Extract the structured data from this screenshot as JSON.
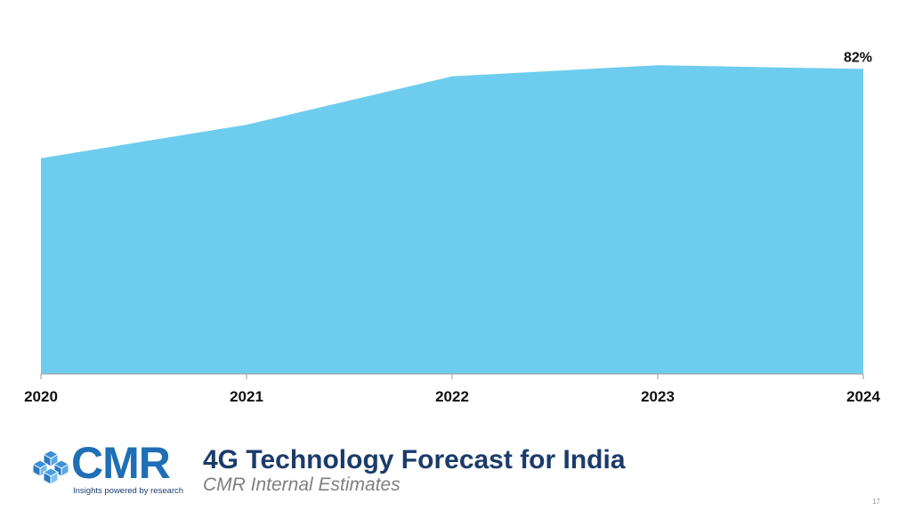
{
  "chart_data": {
    "type": "area",
    "title": "4G Technology Forecast for India",
    "subtitle": "CMR Internal Estimates",
    "categories": [
      "2020",
      "2021",
      "2022",
      "2023",
      "2024"
    ],
    "series": [
      {
        "name": "4G",
        "values": [
          0.58,
          0.67,
          0.8,
          0.83,
          0.82
        ]
      }
    ],
    "data_labels": [
      {
        "category": "2024",
        "text": "82%"
      }
    ],
    "ylim": [
      0,
      0.9
    ],
    "grid": false,
    "legend": "none",
    "colors": {
      "area": "#6ecdee",
      "axis": "#9a9a9a"
    }
  },
  "footer": {
    "logo_text": "CMR",
    "logo_tagline": "Insights powered by research",
    "title": "4G Technology Forecast for India",
    "subtitle": "CMR Internal Estimates",
    "page_number": "17"
  }
}
